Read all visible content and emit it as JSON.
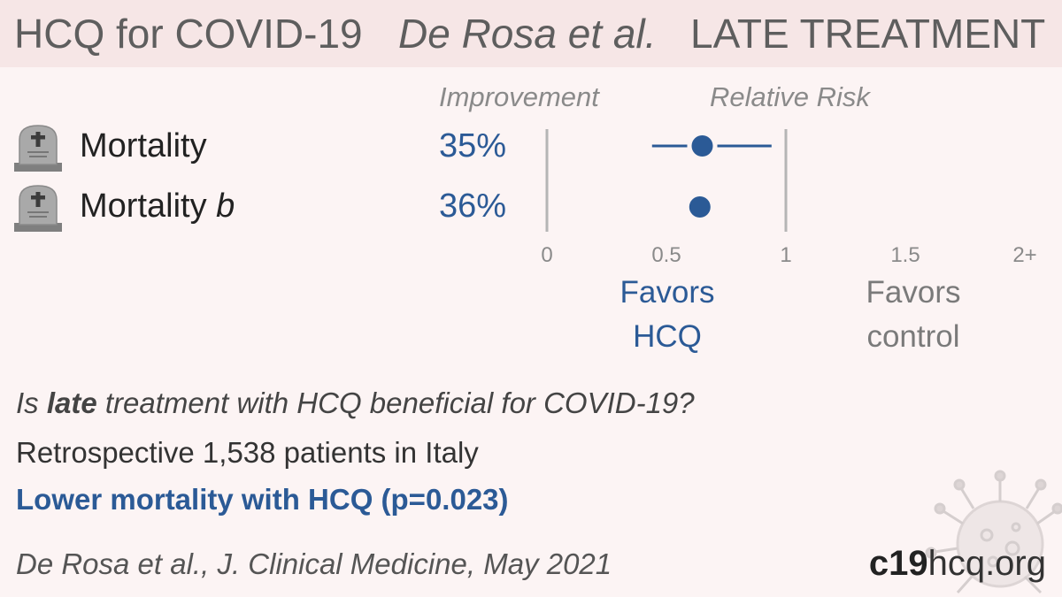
{
  "header": {
    "title": "HCQ for COVID-19",
    "authors": "De Rosa et al.",
    "stage": "LATE TREATMENT"
  },
  "columns": {
    "improvement": "Improvement",
    "relative_risk": "Relative Risk"
  },
  "outcomes": [
    {
      "label": "Mortality",
      "suffix": "",
      "improvement": "35%",
      "icon": "tombstone-icon"
    },
    {
      "label": "Mortality",
      "suffix": "b",
      "improvement": "36%",
      "icon": "tombstone-icon"
    }
  ],
  "favors": {
    "treatment_line1": "Favors",
    "treatment_line2": "HCQ",
    "control_line1": "Favors",
    "control_line2": "control"
  },
  "question": {
    "pre": "Is ",
    "emph": "late",
    "post": " treatment with HCQ beneficial for COVID-19?"
  },
  "design": "Retrospective 1,538 patients in Italy",
  "result": "Lower mortality with HCQ (p=0.023)",
  "citation": "De Rosa et al., J. Clinical Medicine, May 2021",
  "brand": {
    "bold": "c19",
    "rest": "hcq.org"
  },
  "colors": {
    "accent": "#2b5a96",
    "header_bg": "#f6e6e6",
    "background": "#fcf4f4"
  },
  "chart_data": {
    "type": "scatter",
    "title": "",
    "xlabel": "Relative Risk",
    "ylabel": "",
    "xlim": [
      0,
      2
    ],
    "x_ticks": [
      0,
      0.5,
      1,
      1.5,
      2
    ],
    "x_tick_labels": [
      "0",
      "0.5",
      "1",
      "1.5",
      "2+"
    ],
    "reference_lines": [
      0,
      1
    ],
    "series": [
      {
        "category": "Mortality",
        "rr": 0.65,
        "ci": [
          0.44,
          0.94
        ]
      },
      {
        "category": "Mortality b",
        "rr": 0.64,
        "ci": [
          0.62,
          0.66
        ]
      }
    ]
  }
}
